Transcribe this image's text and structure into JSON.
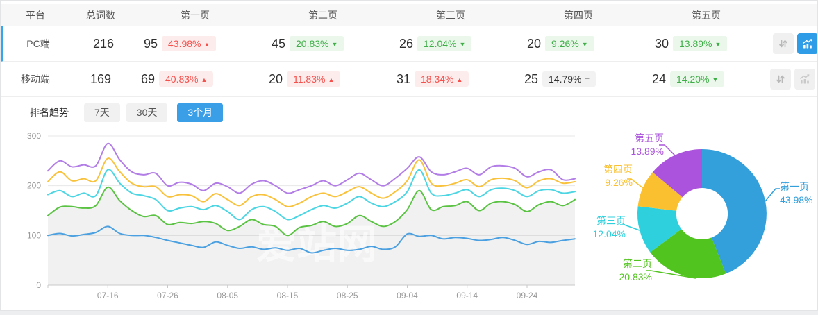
{
  "colors": {
    "accent_blue": "#3b9fe8",
    "selected_row_border": "#36a5f0",
    "badge_red_text": "#f4504c",
    "badge_red_bg": "#fdecec",
    "badge_green_text": "#3eae47",
    "badge_green_bg": "#eaf7ea",
    "badge_gray_bg": "#f2f2f2",
    "pie_palette": [
      "#339fdb",
      "#52c41f",
      "#2ed0dd",
      "#fac02f",
      "#ab53dc"
    ],
    "line_palette": [
      "#4aa0e0",
      "#5bc343",
      "#4cd5e2",
      "#f9c23c",
      "#b27de6"
    ]
  },
  "table": {
    "columns": [
      "平台",
      "总词数",
      "第一页",
      "第二页",
      "第三页",
      "第四页",
      "第五页"
    ],
    "rows": [
      {
        "platform": "PC端",
        "total": "216",
        "selected": true,
        "chart_active": true,
        "pages": [
          {
            "count": "95",
            "pct": "43.98%",
            "dir": "up",
            "tone": "red"
          },
          {
            "count": "45",
            "pct": "20.83%",
            "dir": "down",
            "tone": "green"
          },
          {
            "count": "26",
            "pct": "12.04%",
            "dir": "down",
            "tone": "green"
          },
          {
            "count": "20",
            "pct": "9.26%",
            "dir": "down",
            "tone": "green"
          },
          {
            "count": "30",
            "pct": "13.89%",
            "dir": "down",
            "tone": "green"
          }
        ]
      },
      {
        "platform": "移动端",
        "total": "169",
        "selected": false,
        "chart_active": false,
        "pages": [
          {
            "count": "69",
            "pct": "40.83%",
            "dir": "up",
            "tone": "red"
          },
          {
            "count": "20",
            "pct": "11.83%",
            "dir": "up",
            "tone": "red"
          },
          {
            "count": "31",
            "pct": "18.34%",
            "dir": "up",
            "tone": "red"
          },
          {
            "count": "25",
            "pct": "14.79%",
            "dir": "flat",
            "tone": "gray"
          },
          {
            "count": "24",
            "pct": "14.20%",
            "dir": "down",
            "tone": "green"
          }
        ]
      }
    ]
  },
  "trend": {
    "label": "排名趋势",
    "tabs": [
      {
        "label": "7天",
        "active": false
      },
      {
        "label": "30天",
        "active": false
      },
      {
        "label": "3个月",
        "active": true
      }
    ]
  },
  "watermark": "爱站网",
  "chart_data": [
    {
      "type": "line",
      "title": "排名趋势 3个月",
      "ylim": [
        0,
        300
      ],
      "yticks": [
        0,
        100,
        200,
        300
      ],
      "grid": "horizontal",
      "x_tick_labels": [
        "07-16",
        "07-26",
        "08-05",
        "08-15",
        "08-25",
        "09-04",
        "09-14",
        "09-24"
      ],
      "x_tick_indices": [
        5,
        10,
        15,
        20,
        25,
        30,
        35,
        40
      ],
      "area_under": "第二页",
      "series": [
        {
          "name": "第一页",
          "color": "#4aa0e0",
          "values": [
            100,
            104,
            99,
            102,
            106,
            118,
            104,
            100,
            100,
            96,
            90,
            85,
            80,
            76,
            87,
            80,
            74,
            77,
            72,
            75,
            70,
            74,
            65,
            70,
            74,
            70,
            72,
            78,
            72,
            77,
            103,
            98,
            100,
            93,
            96,
            94,
            90,
            92,
            96,
            90,
            82,
            88,
            86,
            90,
            93
          ]
        },
        {
          "name": "第二页",
          "color": "#5bc343",
          "values": [
            140,
            157,
            158,
            155,
            160,
            197,
            170,
            150,
            138,
            140,
            122,
            126,
            124,
            128,
            124,
            110,
            118,
            132,
            122,
            118,
            100,
            116,
            120,
            128,
            118,
            124,
            140,
            128,
            118,
            128,
            152,
            190,
            152,
            158,
            160,
            168,
            150,
            165,
            168,
            162,
            148,
            162,
            168,
            160,
            172
          ]
        },
        {
          "name": "第三页",
          "color": "#4cd5e2",
          "values": [
            182,
            190,
            178,
            185,
            180,
            232,
            205,
            185,
            180,
            172,
            150,
            155,
            158,
            152,
            160,
            148,
            132,
            152,
            158,
            148,
            132,
            140,
            152,
            160,
            155,
            165,
            178,
            165,
            158,
            168,
            188,
            232,
            185,
            180,
            185,
            192,
            178,
            192,
            195,
            190,
            178,
            190,
            192,
            185,
            188
          ]
        },
        {
          "name": "第四页",
          "color": "#f9c23c",
          "values": [
            208,
            228,
            210,
            214,
            210,
            255,
            228,
            205,
            198,
            198,
            178,
            182,
            180,
            168,
            184,
            172,
            160,
            178,
            182,
            172,
            158,
            165,
            178,
            185,
            178,
            188,
            198,
            185,
            175,
            188,
            210,
            252,
            205,
            200,
            205,
            212,
            198,
            212,
            215,
            210,
            196,
            210,
            214,
            205,
            208
          ]
        },
        {
          "name": "第五页",
          "color": "#b27de6",
          "values": [
            230,
            250,
            238,
            242,
            240,
            285,
            252,
            228,
            222,
            225,
            200,
            207,
            203,
            190,
            205,
            198,
            185,
            203,
            210,
            200,
            185,
            192,
            200,
            210,
            200,
            212,
            225,
            212,
            200,
            215,
            235,
            258,
            228,
            222,
            228,
            235,
            222,
            238,
            240,
            235,
            218,
            228,
            232,
            212,
            214
          ]
        }
      ]
    },
    {
      "type": "pie",
      "donut": true,
      "slices": [
        {
          "label": "第一页",
          "value": 43.98,
          "pct_label": "43.98%",
          "color": "#339fdb"
        },
        {
          "label": "第二页",
          "value": 20.83,
          "pct_label": "20.83%",
          "color": "#52c41f"
        },
        {
          "label": "第三页",
          "value": 12.04,
          "pct_label": "12.04%",
          "color": "#2ed0dd"
        },
        {
          "label": "第四页",
          "value": 9.26,
          "pct_label": "9.26%",
          "color": "#fac02f"
        },
        {
          "label": "第五页",
          "value": 13.89,
          "pct_label": "13.89%",
          "color": "#ab53dc"
        }
      ]
    }
  ]
}
